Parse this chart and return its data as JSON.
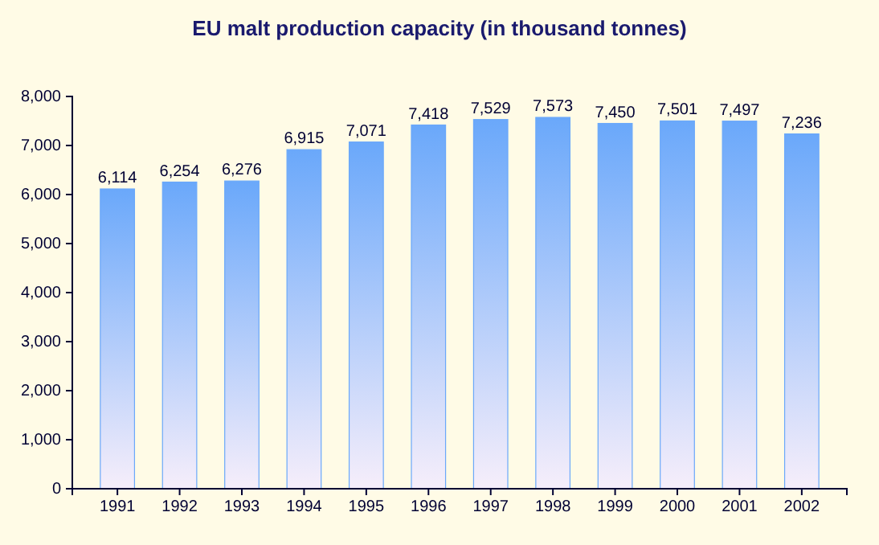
{
  "chart_data": {
    "type": "bar",
    "title": "EU malt production capacity (in thousand tonnes)",
    "categories": [
      "1991",
      "1992",
      "1993",
      "1994",
      "1995",
      "1996",
      "1997",
      "1998",
      "1999",
      "2000",
      "2001",
      "2002"
    ],
    "values": [
      6114,
      6254,
      6276,
      6915,
      7071,
      7418,
      7529,
      7573,
      7450,
      7501,
      7497,
      7236
    ],
    "color": "#6aa8fa",
    "ylim": [
      0,
      8000
    ],
    "yticks": [
      {
        "value": 0,
        "label": "0"
      },
      {
        "value": 1000,
        "label": "1,000"
      },
      {
        "value": 2000,
        "label": "2,000"
      },
      {
        "value": 3000,
        "label": "3,000"
      },
      {
        "value": 4000,
        "label": "4,000"
      },
      {
        "value": 5000,
        "label": "5,000"
      },
      {
        "value": 6000,
        "label": "6,000"
      },
      {
        "value": 7000,
        "label": "7,000"
      },
      {
        "value": 8000,
        "label": "8,000"
      }
    ],
    "value_labels": [
      "6,114",
      "6,254",
      "6,276",
      "6,915",
      "7,071",
      "7,418",
      "7,529",
      "7,573",
      "7,450",
      "7,501",
      "7,497",
      "7,236"
    ]
  }
}
